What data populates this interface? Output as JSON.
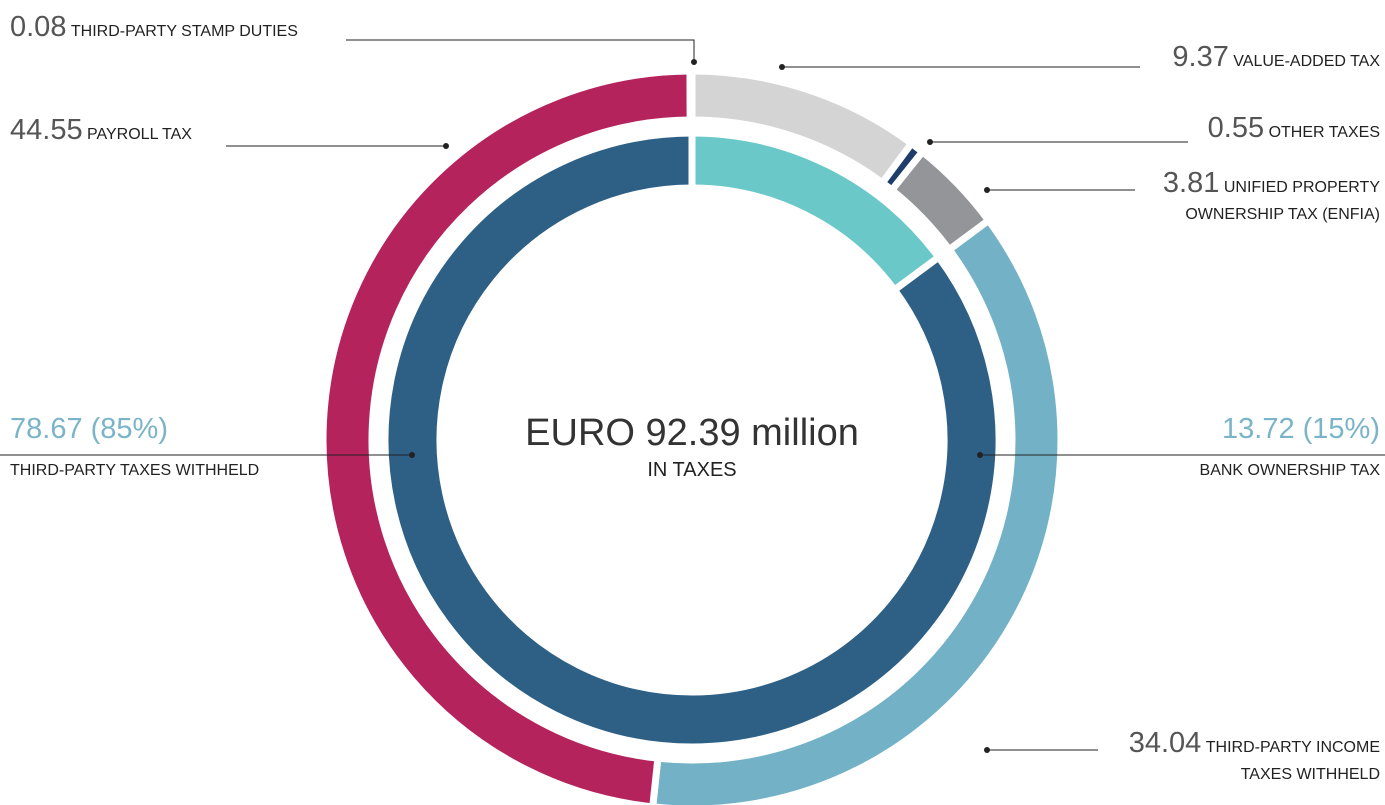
{
  "chart_data": {
    "type": "pie",
    "center_title": "EURO 92.39 million",
    "center_subtitle": "IN TAXES",
    "inner": {
      "categories": [
        "BANK OWNERSHIP TAX",
        "THIRD-PARTY TAXES WITHHELD"
      ],
      "values": [
        13.72,
        78.67
      ],
      "value_labels": [
        "13.72 (15%)",
        "78.67 (85%)"
      ],
      "colors": [
        "#6ac8c9",
        "#2e6086"
      ]
    },
    "outer": {
      "categories": [
        "VALUE-ADDED TAX",
        "OTHER TAXES",
        "UNIFIED PROPERTY\nOWNERSHIP TAX (ENFIA)",
        "THIRD-PARTY INCOME\nTAXES WITHHELD",
        "PAYROLL TAX",
        "THIRD-PARTY STAMP DUTIES"
      ],
      "values": [
        9.37,
        0.55,
        3.81,
        34.04,
        44.55,
        0.08
      ],
      "colors": [
        "#d4d4d5",
        "#1e3d6b",
        "#949598",
        "#73b2c6",
        "#b5235d",
        "#1e3d6b"
      ]
    }
  }
}
